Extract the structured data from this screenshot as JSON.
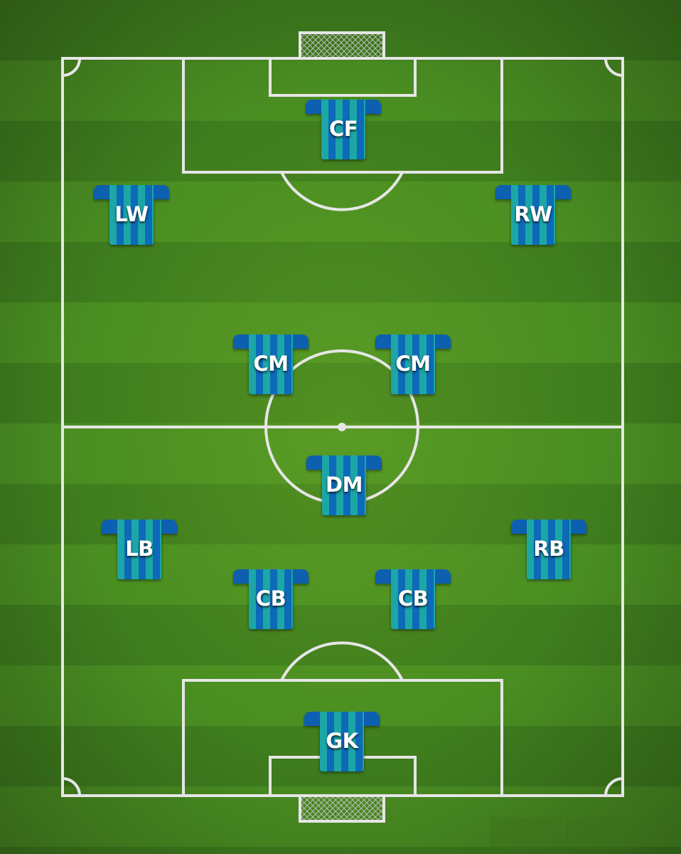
{
  "kit": {
    "primary": "#0a6bb8",
    "stripe": "#1aa6a6",
    "collar": "#0a5fb0",
    "label": "#ffffff"
  },
  "pitch": {
    "line_color": "#e8e8e8",
    "grass_dark": "#3f7d1e",
    "grass_light": "#4a8e22"
  },
  "players": [
    {
      "position": "CF"
    },
    {
      "position": "LW"
    },
    {
      "position": "RW"
    },
    {
      "position": "CM"
    },
    {
      "position": "CM"
    },
    {
      "position": "DM"
    },
    {
      "position": "LB"
    },
    {
      "position": "RB"
    },
    {
      "position": "CB"
    },
    {
      "position": "CB"
    },
    {
      "position": "GK"
    }
  ]
}
